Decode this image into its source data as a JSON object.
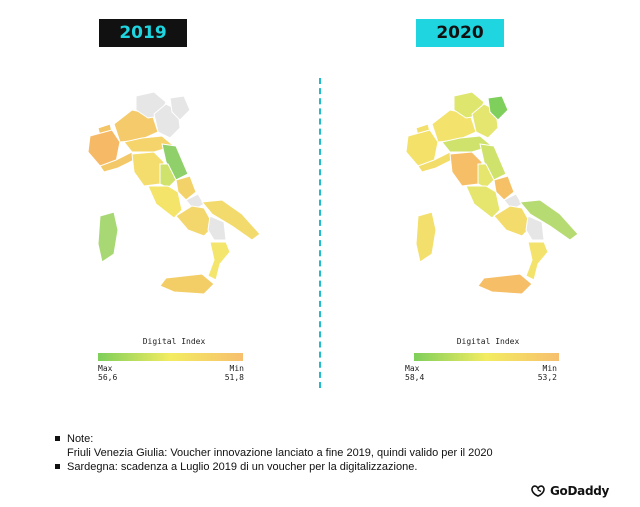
{
  "years": {
    "left": {
      "label": "2019",
      "legend_title": "Digital Index",
      "max_label": "Max",
      "max_value": "56,6",
      "min_label": "Min",
      "min_value": "51,8"
    },
    "right": {
      "label": "2020",
      "legend_title": "Digital Index",
      "max_label": "Max",
      "max_value": "58,4",
      "min_label": "Min",
      "min_value": "53,2"
    }
  },
  "colors": {
    "max": "#7ecf5b",
    "mid": "#f3ec61",
    "min": "#f7bf6e",
    "no_data": "#e6e6e6",
    "badge_dark": "#111111",
    "badge_cyan": "#1fd6e0",
    "divider": "#1fbccc"
  },
  "notes": {
    "heading": "Note:",
    "line1": "Friuli Venezia Giulia: Voucher innovazione lanciato a fine 2019, quindi valido per il 2020",
    "line2": "Sardegna: scadenza a Luglio 2019 di un voucher per la digitalizzazione."
  },
  "brand": {
    "name": "GoDaddy",
    "icon": "godaddy-logo-icon"
  },
  "regions_2019": {
    "valle-d-aosta": "#f3c566",
    "piemonte": "#f6b966",
    "lombardia": "#f5ca6a",
    "trentino": "#e6e6e6",
    "veneto": "#e6e6e6",
    "friuli": "#e6e6e6",
    "liguria": "#f3c868",
    "emilia": "#f6d46c",
    "toscana": "#f4dd6c",
    "marche": "#8fd06a",
    "umbria": "#cfe36c",
    "lazio": "#f4e46a",
    "abruzzo": "#f4d26a",
    "molise": "#e6e6e6",
    "campania": "#f3d66c",
    "puglia": "#f3da6c",
    "basilicata": "#e6e6e6",
    "calabria": "#f4e56c",
    "sicilia": "#f3cd66",
    "sardegna": "#a8d873"
  },
  "regions_2020": {
    "valle-d-aosta": "#f3df6c",
    "piemonte": "#f3e16a",
    "lombardia": "#f3e26c",
    "trentino": "#dfe66e",
    "veneto": "#e4e670",
    "friuli": "#7ecf5b",
    "liguria": "#f3dd6a",
    "emilia": "#cfe36c",
    "toscana": "#f6be66",
    "marche": "#cfe36c",
    "umbria": "#e6e66e",
    "lazio": "#e6e66e",
    "abruzzo": "#f6c066",
    "molise": "#e6e6e6",
    "campania": "#f3dc6c",
    "puglia": "#b6db73",
    "basilicata": "#e6e6e6",
    "calabria": "#f3e36c",
    "sicilia": "#f6be66",
    "sardegna": "#f3df6c"
  }
}
